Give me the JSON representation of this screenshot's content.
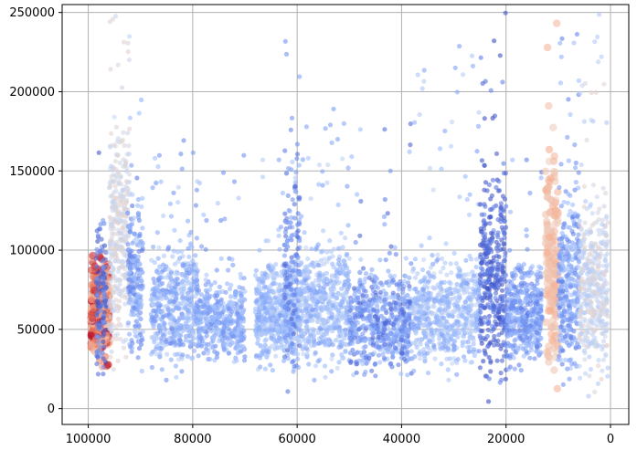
{
  "chart_data": {
    "type": "scatter",
    "title": "",
    "xlabel": "",
    "ylabel": "",
    "x_inverted": true,
    "xlim": [
      105000,
      -3500
    ],
    "ylim": [
      -10000,
      255000
    ],
    "grid": true,
    "x_ticks": [
      100000,
      80000,
      60000,
      40000,
      20000,
      0
    ],
    "y_ticks": [
      0,
      50000,
      100000,
      150000,
      200000,
      250000
    ],
    "x_tick_labels": [
      "100000",
      "80000",
      "60000",
      "40000",
      "20000",
      "0"
    ],
    "y_tick_labels": [
      "0",
      "50000",
      "100000",
      "150000",
      "200000",
      "250000"
    ],
    "colormap": "coolwarm",
    "colormap_colors": [
      "#3b4cc0",
      "#6788ee",
      "#9abbff",
      "#c9d7f0",
      "#edd1c2",
      "#f7a889",
      "#e26952",
      "#b40426"
    ],
    "clusters": [
      {
        "x_range": [
          96000,
          99500
        ],
        "y_center": 60000,
        "y_spread": 22000,
        "y_max": 110000,
        "color_range": [
          0.6,
          1.0
        ],
        "density": 420
      },
      {
        "x_range": [
          96500,
          98500
        ],
        "y_center": 70000,
        "y_spread": 40000,
        "y_max": 200000,
        "color_range": [
          0.0,
          0.2
        ],
        "density": 120
      },
      {
        "x_range": [
          92000,
          96000
        ],
        "y_center": 110000,
        "y_spread": 55000,
        "y_max": 250000,
        "color_range": [
          0.4,
          0.55
        ],
        "density": 360
      },
      {
        "x_range": [
          89500,
          92500
        ],
        "y_center": 80000,
        "y_spread": 40000,
        "y_max": 200000,
        "color_range": [
          0.1,
          0.35
        ],
        "density": 200
      },
      {
        "x_range": [
          79000,
          88000
        ],
        "y_center": 65000,
        "y_spread": 28000,
        "y_max": 170000,
        "color_range": [
          0.15,
          0.4
        ],
        "density": 520
      },
      {
        "x_range": [
          70000,
          79000
        ],
        "y_center": 55000,
        "y_spread": 18000,
        "y_max": 160000,
        "color_range": [
          0.15,
          0.35
        ],
        "density": 420
      },
      {
        "x_range": [
          60000,
          68000
        ],
        "y_center": 60000,
        "y_spread": 25000,
        "y_max": 160000,
        "color_range": [
          0.2,
          0.4
        ],
        "density": 560
      },
      {
        "x_range": [
          59500,
          62500
        ],
        "y_center": 90000,
        "y_spread": 55000,
        "y_max": 250000,
        "color_range": [
          0.05,
          0.25
        ],
        "density": 160
      },
      {
        "x_range": [
          50000,
          60000
        ],
        "y_center": 65000,
        "y_spread": 28000,
        "y_max": 190000,
        "color_range": [
          0.2,
          0.42
        ],
        "density": 560
      },
      {
        "x_range": [
          38000,
          50000
        ],
        "y_center": 55000,
        "y_spread": 24000,
        "y_max": 180000,
        "color_range": [
          0.05,
          0.35
        ],
        "density": 620
      },
      {
        "x_range": [
          25000,
          38000
        ],
        "y_center": 60000,
        "y_spread": 26000,
        "y_max": 230000,
        "color_range": [
          0.2,
          0.42
        ],
        "density": 620
      },
      {
        "x_range": [
          20000,
          25000
        ],
        "y_center": 80000,
        "y_spread": 45000,
        "y_max": 250000,
        "color_range": [
          0.0,
          0.15
        ],
        "density": 380
      },
      {
        "x_range": [
          13000,
          20000
        ],
        "y_center": 60000,
        "y_spread": 25000,
        "y_max": 160000,
        "color_range": [
          0.1,
          0.32
        ],
        "density": 420
      },
      {
        "x_range": [
          10000,
          12500
        ],
        "y_center": 90000,
        "y_spread": 55000,
        "y_max": 250000,
        "color_range": [
          0.58,
          0.7
        ],
        "density": 180
      },
      {
        "x_range": [
          6000,
          10000
        ],
        "y_center": 80000,
        "y_spread": 45000,
        "y_max": 250000,
        "color_range": [
          0.1,
          0.35
        ],
        "density": 340
      },
      {
        "x_range": [
          500,
          6000
        ],
        "y_center": 75000,
        "y_spread": 40000,
        "y_max": 250000,
        "color_range": [
          0.35,
          0.55
        ],
        "density": 420
      }
    ]
  }
}
